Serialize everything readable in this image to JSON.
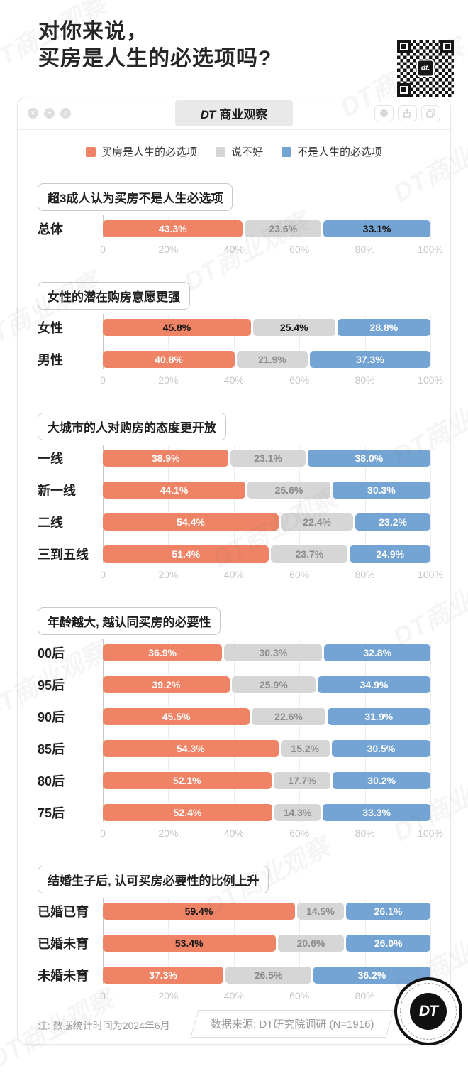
{
  "header": {
    "title_line1": "对你来说，",
    "title_line2": "买房是人生的必选项吗?"
  },
  "qr": {
    "chip_label": "dt."
  },
  "window": {
    "brand": "DT",
    "title": "商业观察",
    "controls": [
      "×",
      "−",
      "∕"
    ]
  },
  "legend": {
    "items": [
      {
        "label": "买房是人生的必选项",
        "color": "#EE8465"
      },
      {
        "label": "说不好",
        "color": "#D6D6D6"
      },
      {
        "label": "不是人生的必选项",
        "color": "#74A4D4"
      }
    ]
  },
  "chart_data": {
    "type": "bar",
    "orientation": "horizontal",
    "stacked": true,
    "xlim": [
      0,
      100
    ],
    "grid": true,
    "legend_position": "top",
    "x_ticks": [
      "0",
      "20%",
      "40%",
      "60%",
      "80%",
      "100%"
    ],
    "series_names": [
      "买房是人生的必选项",
      "说不好",
      "不是人生的必选项"
    ],
    "colors": [
      "#EE8465",
      "#D6D6D6",
      "#74A4D4"
    ],
    "sections": [
      {
        "heading": "超3成人认为买房不是人生必选项",
        "rows": [
          {
            "label": "总体",
            "values": [
              43.3,
              23.6,
              33.1
            ],
            "display": [
              "43.3%",
              "23.6%",
              "33.1%"
            ],
            "emphasis": [
              false,
              false,
              true
            ]
          }
        ]
      },
      {
        "heading": "女性的潜在购房意愿更强",
        "rows": [
          {
            "label": "女性",
            "values": [
              45.8,
              25.4,
              28.8
            ],
            "display": [
              "45.8%",
              "25.4%",
              "28.8%"
            ],
            "emphasis": [
              true,
              true,
              false
            ]
          },
          {
            "label": "男性",
            "values": [
              40.8,
              21.9,
              37.3
            ],
            "display": [
              "40.8%",
              "21.9%",
              "37.3%"
            ],
            "emphasis": [
              false,
              false,
              false
            ]
          }
        ]
      },
      {
        "heading": "大城市的人对购房的态度更开放",
        "rows": [
          {
            "label": "一线",
            "values": [
              38.9,
              23.1,
              38.0
            ],
            "display": [
              "38.9%",
              "23.1%",
              "38.0%"
            ],
            "emphasis": [
              false,
              false,
              false
            ]
          },
          {
            "label": "新一线",
            "values": [
              44.1,
              25.6,
              30.3
            ],
            "display": [
              "44.1%",
              "25.6%",
              "30.3%"
            ],
            "emphasis": [
              false,
              false,
              false
            ]
          },
          {
            "label": "二线",
            "values": [
              54.4,
              22.4,
              23.2
            ],
            "display": [
              "54.4%",
              "22.4%",
              "23.2%"
            ],
            "emphasis": [
              false,
              false,
              false
            ]
          },
          {
            "label": "三到五线",
            "values": [
              51.4,
              23.7,
              24.9
            ],
            "display": [
              "51.4%",
              "23.7%",
              "24.9%"
            ],
            "emphasis": [
              false,
              false,
              false
            ]
          }
        ]
      },
      {
        "heading": "年龄越大, 越认同买房的必要性",
        "rows": [
          {
            "label": "00后",
            "values": [
              36.9,
              30.3,
              32.8
            ],
            "display": [
              "36.9%",
              "30.3%",
              "32.8%"
            ],
            "emphasis": [
              false,
              false,
              false
            ]
          },
          {
            "label": "95后",
            "values": [
              39.2,
              25.9,
              34.9
            ],
            "display": [
              "39.2%",
              "25.9%",
              "34.9%"
            ],
            "emphasis": [
              false,
              false,
              false
            ]
          },
          {
            "label": "90后",
            "values": [
              45.5,
              22.6,
              31.9
            ],
            "display": [
              "45.5%",
              "22.6%",
              "31.9%"
            ],
            "emphasis": [
              false,
              false,
              false
            ]
          },
          {
            "label": "85后",
            "values": [
              54.3,
              15.2,
              30.5
            ],
            "display": [
              "54.3%",
              "15.2%",
              "30.5%"
            ],
            "emphasis": [
              false,
              false,
              false
            ]
          },
          {
            "label": "80后",
            "values": [
              52.1,
              17.7,
              30.2
            ],
            "display": [
              "52.1%",
              "17.7%",
              "30.2%"
            ],
            "emphasis": [
              false,
              false,
              false
            ]
          },
          {
            "label": "75后",
            "values": [
              52.4,
              14.3,
              33.3
            ],
            "display": [
              "52.4%",
              "14.3%",
              "33.3%"
            ],
            "emphasis": [
              false,
              false,
              false
            ]
          }
        ]
      },
      {
        "heading": "结婚生子后, 认可买房必要性的比例上升",
        "rows": [
          {
            "label": "已婚已育",
            "values": [
              59.4,
              14.5,
              26.1
            ],
            "display": [
              "59.4%",
              "14.5%",
              "26.1%"
            ],
            "emphasis": [
              true,
              false,
              false
            ]
          },
          {
            "label": "已婚未育",
            "values": [
              53.4,
              20.6,
              26.0
            ],
            "display": [
              "53.4%",
              "20.6%",
              "26.0%"
            ],
            "emphasis": [
              true,
              false,
              false
            ]
          },
          {
            "label": "未婚未育",
            "values": [
              37.3,
              26.5,
              36.2
            ],
            "display": [
              "37.3%",
              "26.5%",
              "36.2%"
            ],
            "emphasis": [
              false,
              false,
              false
            ]
          }
        ]
      }
    ]
  },
  "footer": {
    "note": "注: 数据统计时间为2024年6月",
    "source": "数据来源: DT研究院调研 (N=1916)",
    "logo_text": "DT",
    "watermark_text": "DT商业观察"
  }
}
